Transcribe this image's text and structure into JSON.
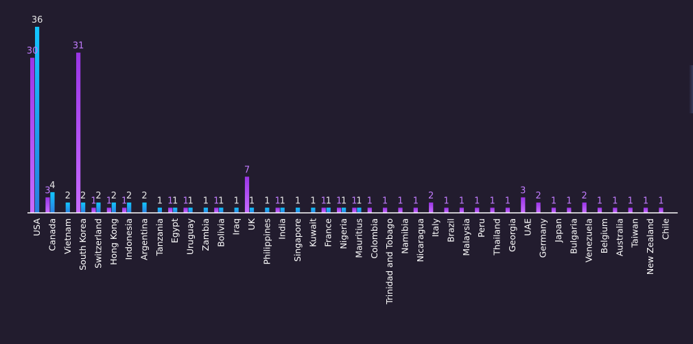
{
  "chart_data": {
    "type": "bar",
    "categories": [
      "USA",
      "Canada",
      "Vietnam",
      "South Korea",
      "Switzerland",
      "Hong Kong",
      "Indonesia",
      "Argentina",
      "Tanzania",
      "Egypt",
      "Uruguay",
      "Zambia",
      "Bolivia",
      "Iraq",
      "UK",
      "Philippines",
      "India",
      "Singapore",
      "Kuwait",
      "France",
      "Nigeria",
      "Mauritius",
      "Colombia",
      "Trinidad and Tobago",
      "Namibia",
      "Nicaragua",
      "Italy",
      "Brazil",
      "Malaysia",
      "Peru",
      "Thailand",
      "Georgia",
      "UAE",
      "Germany",
      "Japan",
      "Bulgaria",
      "Venezuela",
      "Belgium",
      "Australia",
      "Taiwan",
      "New Zealand",
      "Chile"
    ],
    "series": [
      {
        "color": "#a044ff",
        "values": [
          30,
          3,
          null,
          31,
          1,
          1,
          1,
          null,
          null,
          1,
          1,
          null,
          1,
          null,
          7,
          null,
          1,
          null,
          null,
          1,
          1,
          1,
          1,
          1,
          1,
          1,
          2,
          1,
          1,
          1,
          1,
          1,
          3,
          2,
          1,
          1,
          2,
          1,
          1,
          1,
          1,
          1
        ]
      },
      {
        "color": "#1e9be8",
        "values": [
          36,
          4,
          2,
          2,
          2,
          2,
          2,
          2,
          1,
          1,
          1,
          1,
          1,
          1,
          1,
          1,
          1,
          1,
          1,
          1,
          1,
          1,
          null,
          null,
          null,
          null,
          null,
          null,
          null,
          null,
          null,
          null,
          null,
          null,
          null,
          null,
          null,
          null,
          null,
          null,
          null,
          null
        ]
      }
    ],
    "ylim": [
      0,
      36
    ],
    "title": "",
    "xlabel": "",
    "ylabel": "",
    "legend": "none",
    "grid": false,
    "data_labels": true,
    "background": "#221c2e"
  }
}
